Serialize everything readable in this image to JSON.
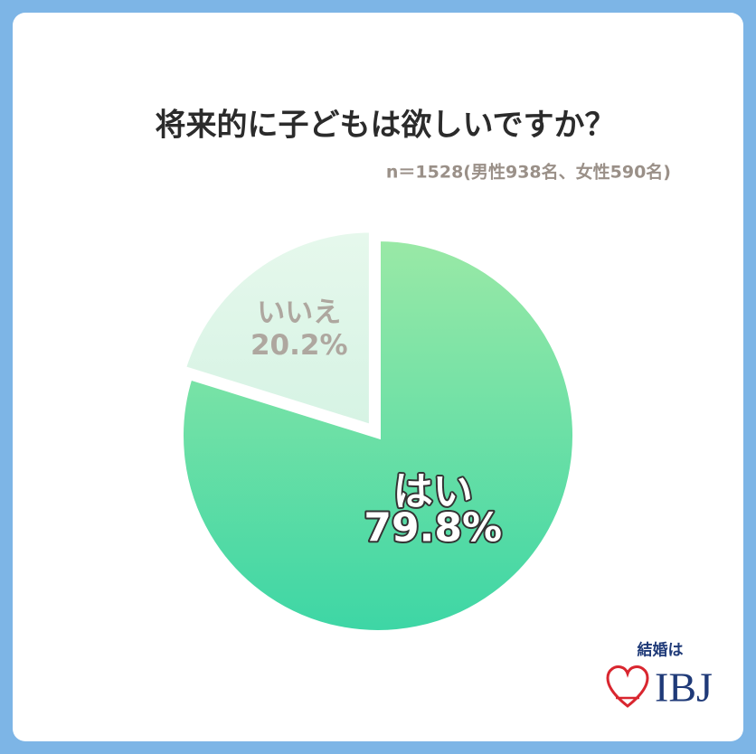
{
  "chart_data": {
    "type": "pie",
    "title": "将来的に子どもは欲しいですか？",
    "subtitle": "n＝1528(男性938名、女性590名)",
    "categories": [
      "はい",
      "いいえ"
    ],
    "values": [
      79.8,
      20.2
    ],
    "value_labels": [
      "79.8%",
      "20.2%"
    ],
    "gradients": [
      [
        "#9ae9a6",
        "#3dd6a5"
      ],
      [
        "#e6f8ec",
        "#d6f3e4"
      ]
    ],
    "start_angle": -90,
    "direction": "clockwise"
  },
  "logo": {
    "tagline": "結婚は",
    "name": "IBJ"
  }
}
